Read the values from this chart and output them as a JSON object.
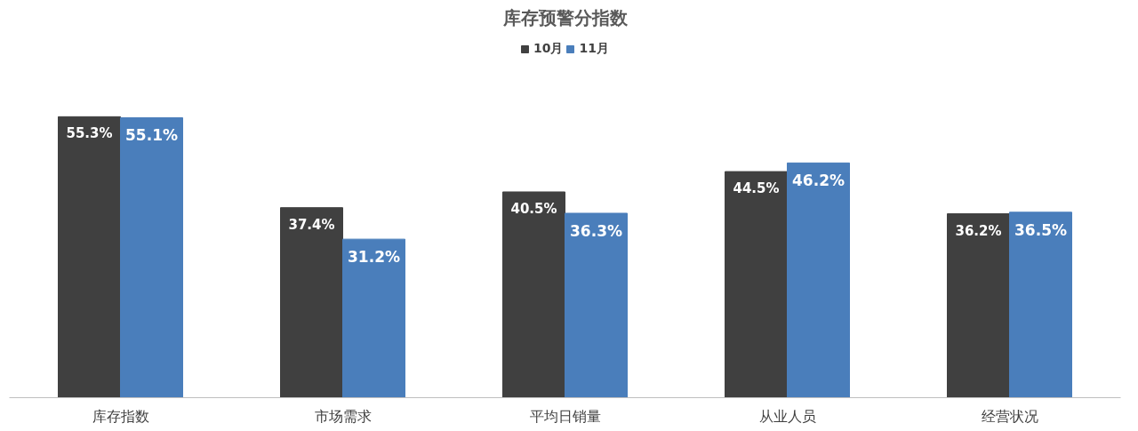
{
  "chart_data": {
    "type": "bar",
    "title": "库存预警分指数",
    "categories": [
      "库存指数",
      "市场需求",
      "平均日销量",
      "从业人员",
      "经营状况"
    ],
    "series": [
      {
        "name": "10月",
        "color": "#404040",
        "values": [
          55.3,
          37.4,
          40.5,
          44.5,
          36.2
        ],
        "value_labels": [
          "55.3%",
          "37.4%",
          "40.5%",
          "44.5%",
          "36.2%"
        ]
      },
      {
        "name": "11月",
        "color": "#4a7ebb",
        "values": [
          55.1,
          31.2,
          36.3,
          46.2,
          36.5
        ],
        "value_labels": [
          "55.1%",
          "31.2%",
          "36.3%",
          "46.2%",
          "36.5%"
        ]
      }
    ],
    "legend": "top"
  }
}
